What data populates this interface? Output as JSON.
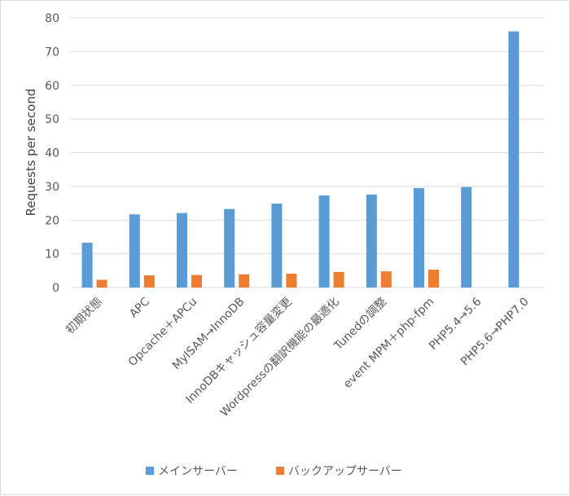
{
  "chart_data": {
    "type": "bar",
    "title": "",
    "xlabel": "",
    "ylabel": "Requests per second",
    "ylim": [
      0,
      80
    ],
    "yticks": [
      0,
      10,
      20,
      30,
      40,
      50,
      60,
      70,
      80
    ],
    "grid": true,
    "legend_position": "bottom",
    "categories": [
      "初期状態",
      "APC",
      "Opcache＋APCu",
      "MyISAM→InnoDB",
      "InnoDBキャッシュ容量変更",
      "Wordpressの翻訳機能の最適化",
      "Tunedの調整",
      "event MPM＋php-fpm",
      "PHP5.4→5.6",
      "PHP5.6→PHP7.0"
    ],
    "series": [
      {
        "name": "メインサーバー",
        "color": "#5b9bd5",
        "values": [
          13.3,
          21.7,
          22.1,
          23.3,
          24.9,
          27.3,
          27.6,
          29.5,
          29.8,
          76.0
        ]
      },
      {
        "name": "バックアップサーバー",
        "color": "#ed7d31",
        "values": [
          2.3,
          3.6,
          3.7,
          3.9,
          4.1,
          4.6,
          4.8,
          5.3,
          null,
          null
        ]
      }
    ]
  }
}
